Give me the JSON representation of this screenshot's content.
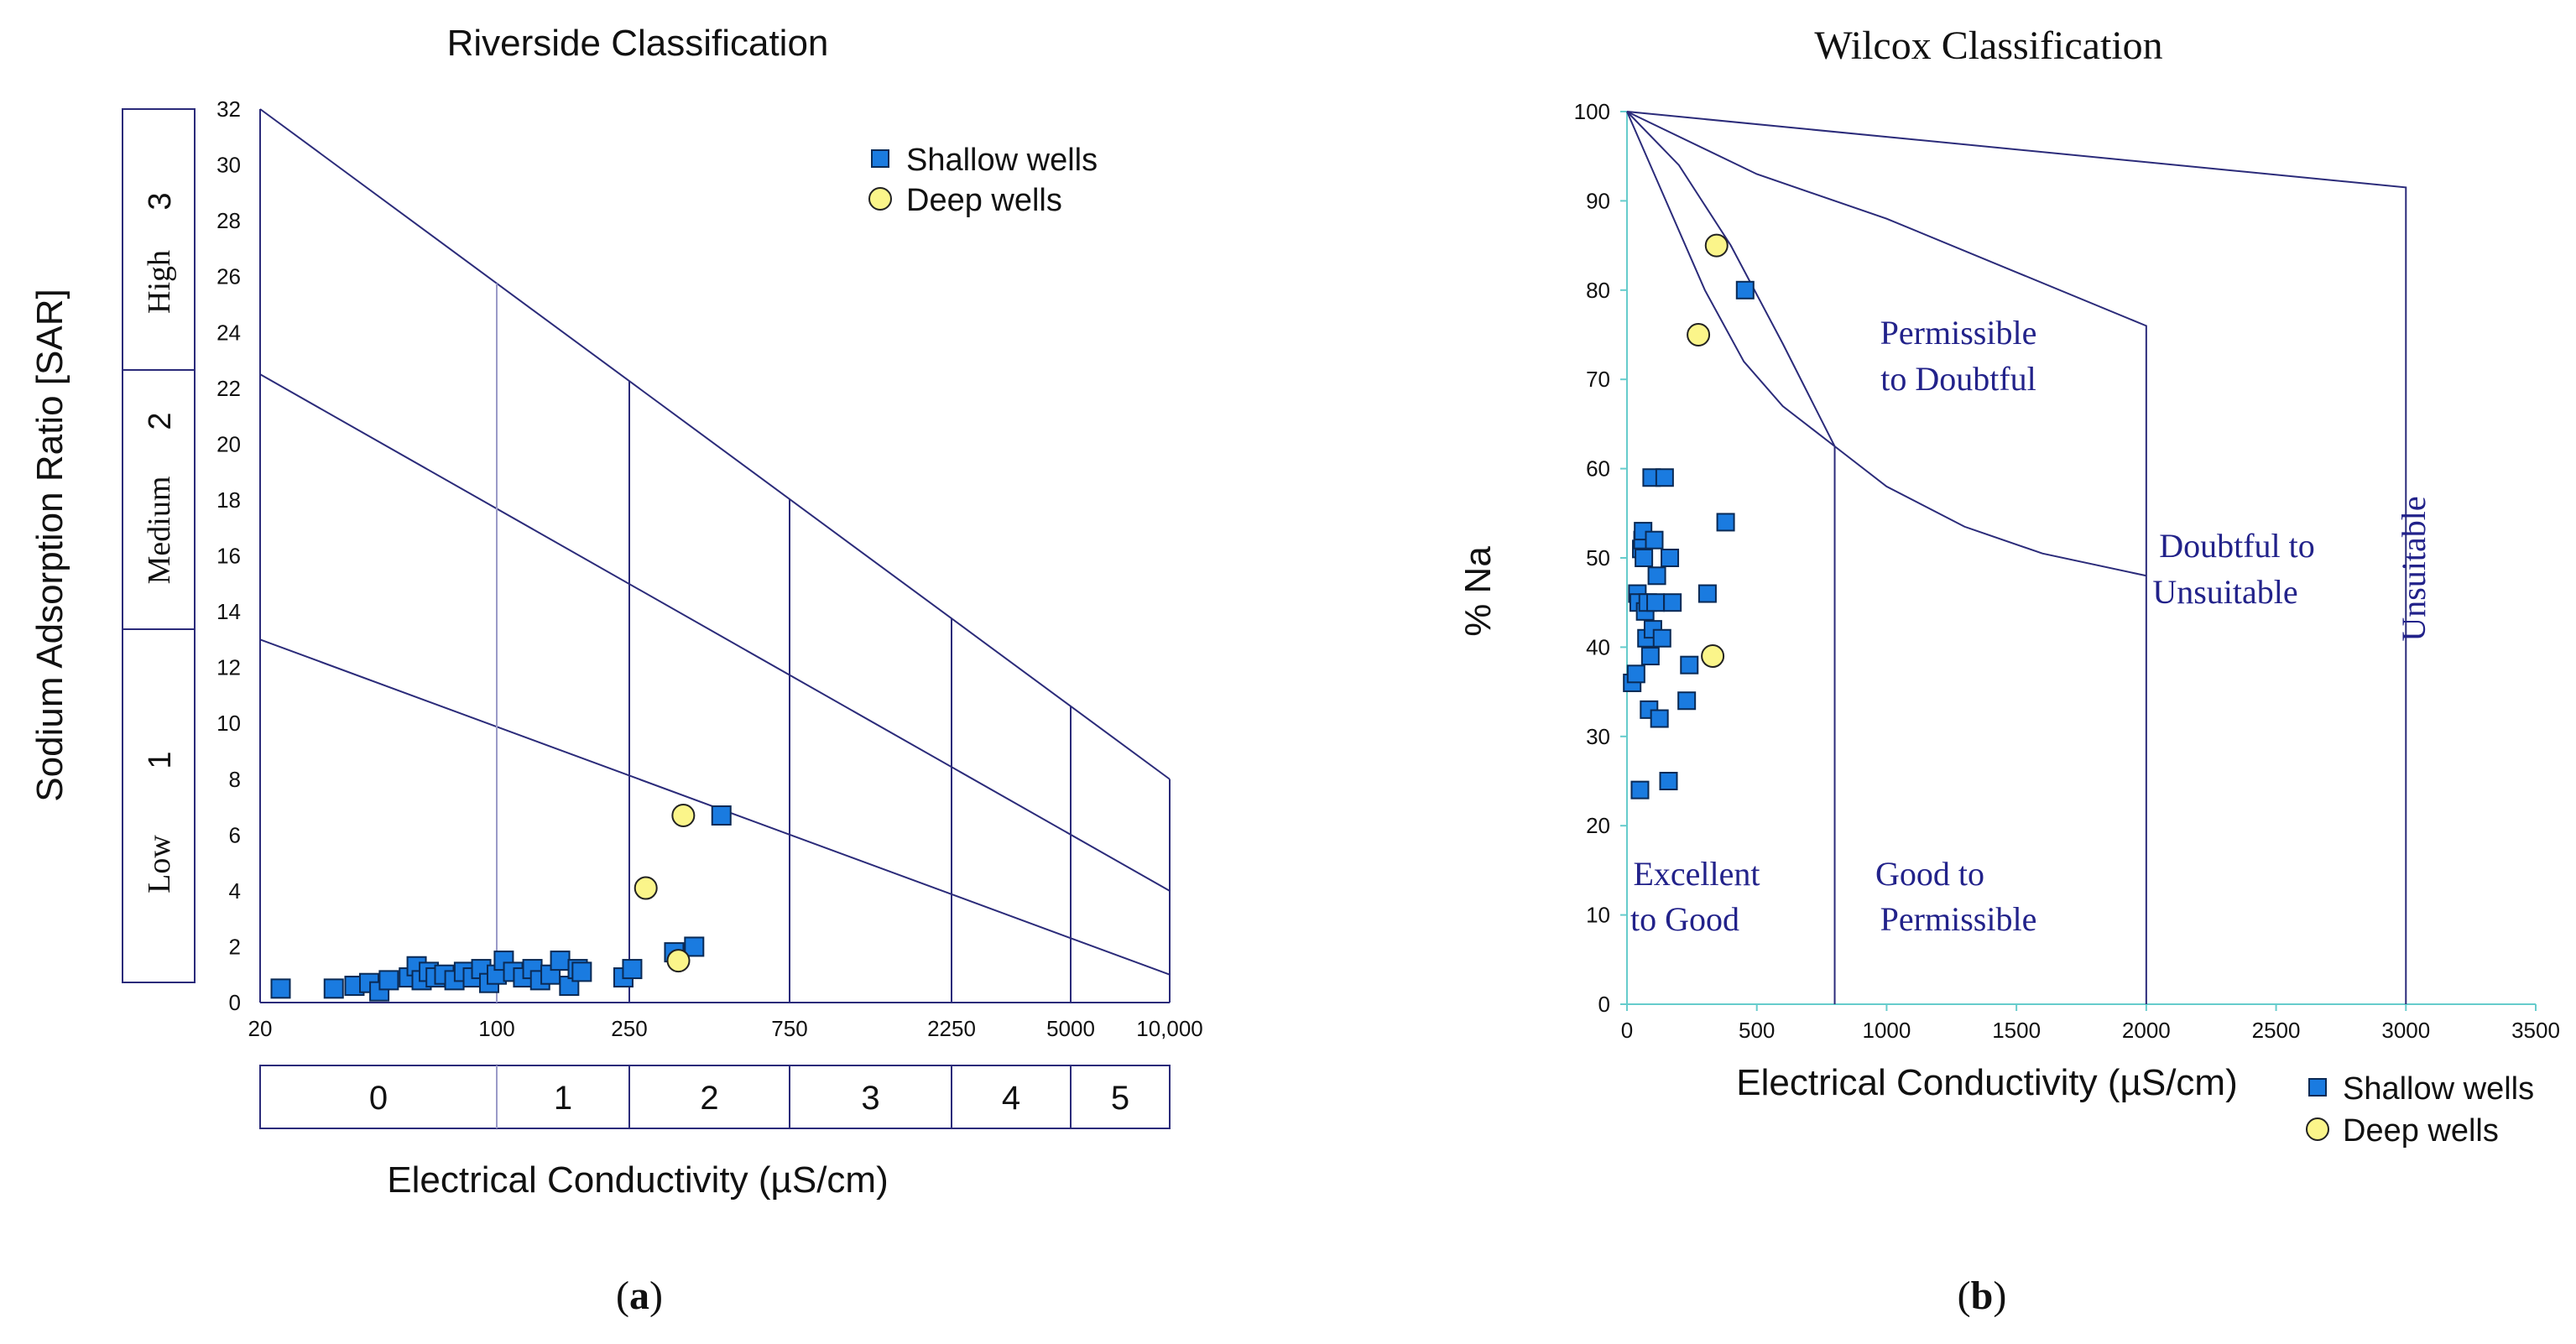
{
  "colors": {
    "line": "#2b2b7a",
    "grid_light": "#9a9ac8",
    "shallow": "#1a7be0",
    "deep": "#fbf58a",
    "region_text": "#22228a",
    "wilcox_axis": "#66cccc"
  },
  "chart_data": [
    {
      "type": "scatter",
      "title": "Riverside Classification",
      "xlabel": "Electrical Conductivity (µS/cm)",
      "ylabel": "Sodium Adsorption Ratio [SAR]",
      "ylim": [
        0,
        32
      ],
      "y_ticks": [
        "0",
        "2",
        "4",
        "6",
        "8",
        "10",
        "12",
        "14",
        "16",
        "18",
        "20",
        "22",
        "24",
        "26",
        "28",
        "30",
        "32"
      ],
      "x_ticks": [
        "20",
        "100",
        "250",
        "750",
        "2250",
        "5000",
        "10,000"
      ],
      "salinity_classes": [
        "0",
        "1",
        "2",
        "3",
        "4",
        "5"
      ],
      "sodium_classes": [
        {
          "label": "Low",
          "num": "1"
        },
        {
          "label": "Medium",
          "num": "2"
        },
        {
          "label": "High",
          "num": "3"
        }
      ],
      "legend": {
        "position": "top-right",
        "entries": [
          "Shallow wells",
          "Deep wells"
        ]
      },
      "series": [
        {
          "name": "Shallow wells",
          "marker": "square",
          "points": [
            {
              "ec": 23,
              "sar": 0.5
            },
            {
              "ec": 33,
              "sar": 0.5
            },
            {
              "ec": 38,
              "sar": 0.6
            },
            {
              "ec": 42,
              "sar": 0.7
            },
            {
              "ec": 45,
              "sar": 0.4
            },
            {
              "ec": 48,
              "sar": 0.8
            },
            {
              "ec": 55,
              "sar": 0.9
            },
            {
              "ec": 58,
              "sar": 1.3
            },
            {
              "ec": 60,
              "sar": 0.8
            },
            {
              "ec": 63,
              "sar": 1.1
            },
            {
              "ec": 66,
              "sar": 0.9
            },
            {
              "ec": 70,
              "sar": 1.0
            },
            {
              "ec": 75,
              "sar": 0.8
            },
            {
              "ec": 80,
              "sar": 1.1
            },
            {
              "ec": 85,
              "sar": 0.9
            },
            {
              "ec": 90,
              "sar": 1.2
            },
            {
              "ec": 95,
              "sar": 0.7
            },
            {
              "ec": 100,
              "sar": 1.0
            },
            {
              "ec": 105,
              "sar": 1.5
            },
            {
              "ec": 112,
              "sar": 1.1
            },
            {
              "ec": 120,
              "sar": 0.9
            },
            {
              "ec": 128,
              "sar": 1.2
            },
            {
              "ec": 135,
              "sar": 0.8
            },
            {
              "ec": 145,
              "sar": 1.0
            },
            {
              "ec": 155,
              "sar": 1.5
            },
            {
              "ec": 165,
              "sar": 0.6
            },
            {
              "ec": 175,
              "sar": 1.2
            },
            {
              "ec": 180,
              "sar": 1.1
            },
            {
              "ec": 240,
              "sar": 0.9
            },
            {
              "ec": 255,
              "sar": 1.2
            },
            {
              "ec": 340,
              "sar": 1.8
            },
            {
              "ec": 390,
              "sar": 2.0
            },
            {
              "ec": 470,
              "sar": 6.7
            }
          ]
        },
        {
          "name": "Deep wells",
          "marker": "circle",
          "points": [
            {
              "ec": 280,
              "sar": 4.1
            },
            {
              "ec": 350,
              "sar": 1.5
            },
            {
              "ec": 362,
              "sar": 6.7
            }
          ]
        }
      ]
    },
    {
      "type": "scatter",
      "title": "Wilcox Classification",
      "xlabel": "Electrical Conductivity (µS/cm)",
      "ylabel": "% Na",
      "xlim": [
        0,
        3500
      ],
      "ylim": [
        0,
        100
      ],
      "x_ticks": [
        "0",
        "500",
        "1000",
        "1500",
        "2000",
        "2500",
        "3000",
        "3500"
      ],
      "y_ticks": [
        "0",
        "10",
        "20",
        "30",
        "40",
        "50",
        "60",
        "70",
        "80",
        "90",
        "100"
      ],
      "regions": [
        {
          "label1": "Excellent",
          "label2": "to Good"
        },
        {
          "label1": "Good to",
          "label2": "Permissible"
        },
        {
          "label1": "Permissible",
          "label2": "to Doubtful"
        },
        {
          "label1": "Doubtful to",
          "label2": "Unsuitable"
        },
        {
          "label1": "Unsuitable",
          "label2": ""
        }
      ],
      "legend": {
        "position": "bottom-right",
        "entries": [
          "Shallow wells",
          "Deep wells"
        ]
      },
      "series": [
        {
          "name": "Shallow wells",
          "marker": "square",
          "points": [
            {
              "ec": 20,
              "pna": 36
            },
            {
              "ec": 35,
              "pna": 37
            },
            {
              "ec": 40,
              "pna": 46
            },
            {
              "ec": 45,
              "pna": 45
            },
            {
              "ec": 50,
              "pna": 24
            },
            {
              "ec": 55,
              "pna": 51
            },
            {
              "ec": 60,
              "pna": 52
            },
            {
              "ec": 62,
              "pna": 53
            },
            {
              "ec": 65,
              "pna": 50
            },
            {
              "ec": 70,
              "pna": 44
            },
            {
              "ec": 75,
              "pna": 41
            },
            {
              "ec": 80,
              "pna": 45
            },
            {
              "ec": 85,
              "pna": 33
            },
            {
              "ec": 90,
              "pna": 39
            },
            {
              "ec": 95,
              "pna": 59
            },
            {
              "ec": 100,
              "pna": 42
            },
            {
              "ec": 105,
              "pna": 52
            },
            {
              "ec": 110,
              "pna": 45
            },
            {
              "ec": 115,
              "pna": 48
            },
            {
              "ec": 125,
              "pna": 32
            },
            {
              "ec": 135,
              "pna": 41
            },
            {
              "ec": 145,
              "pna": 59
            },
            {
              "ec": 160,
              "pna": 25
            },
            {
              "ec": 165,
              "pna": 50
            },
            {
              "ec": 175,
              "pna": 45
            },
            {
              "ec": 230,
              "pna": 34
            },
            {
              "ec": 240,
              "pna": 38
            },
            {
              "ec": 310,
              "pna": 46
            },
            {
              "ec": 380,
              "pna": 54
            },
            {
              "ec": 455,
              "pna": 80
            }
          ]
        },
        {
          "name": "Deep wells",
          "marker": "circle",
          "points": [
            {
              "ec": 275,
              "pna": 75
            },
            {
              "ec": 330,
              "pna": 39
            },
            {
              "ec": 345,
              "pna": 85
            }
          ]
        }
      ]
    }
  ],
  "panels": {
    "a": "a",
    "b": "b"
  }
}
